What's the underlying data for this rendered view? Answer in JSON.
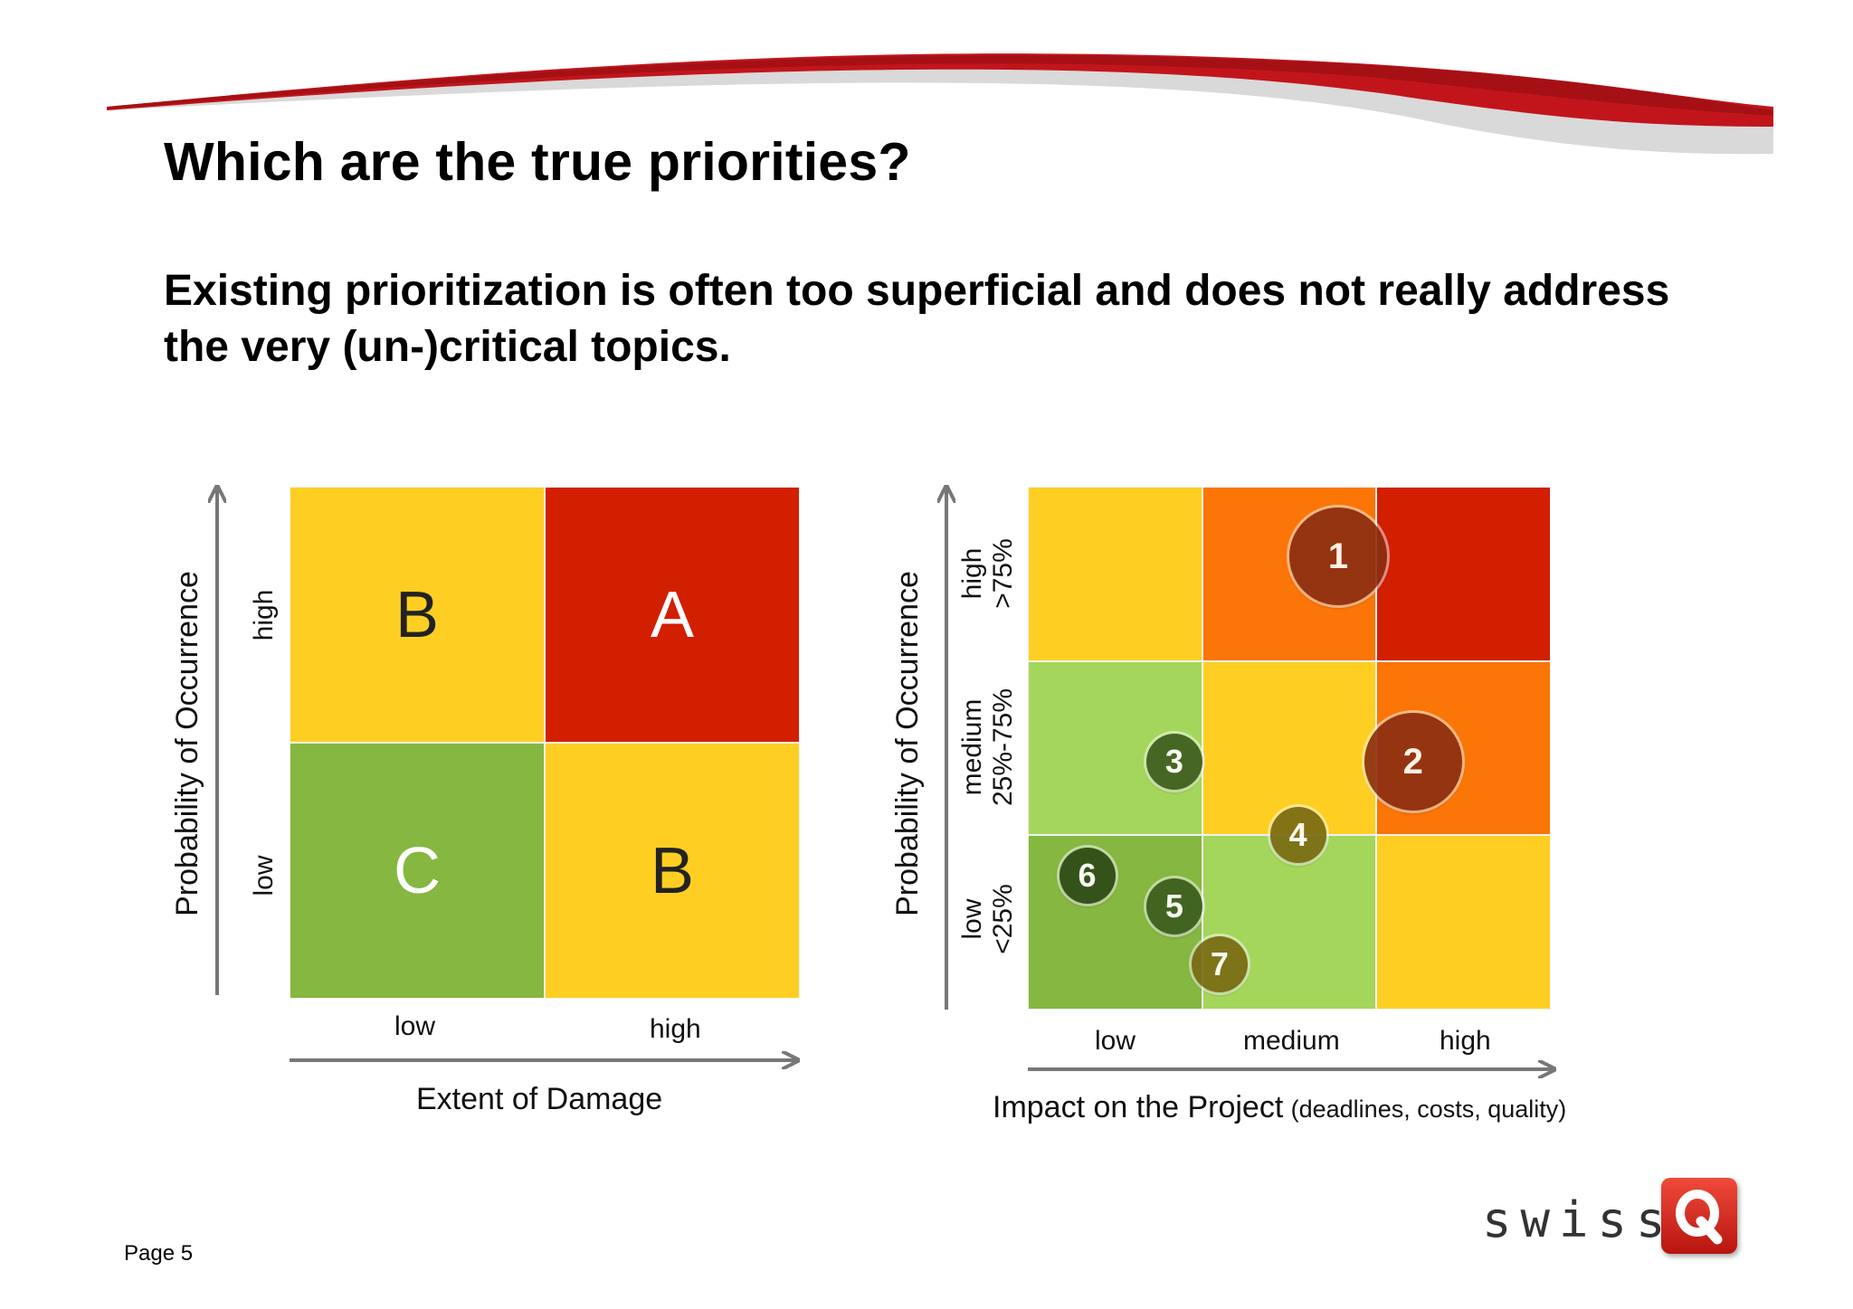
{
  "title": "Which are the true priorities?",
  "subtitle": "Existing prioritization is often too superficial and does not really address the very (un-)critical topics.",
  "colors": {
    "red": "#d21f00",
    "orange": "#fb7507",
    "yellow": "#fecf22",
    "green": "#85b741",
    "light_green": "#a5d65c",
    "bubble_red": "#8a2e12",
    "bubble_green": "#3d5e1f",
    "bubble_olive": "#7a6b14"
  },
  "matrix_left": {
    "y_axis_title": "Probability of Occurrence",
    "x_axis_title": "Extent of Damage",
    "y_labels": [
      "high",
      "low"
    ],
    "x_labels": [
      "low",
      "high"
    ],
    "cells": [
      {
        "label": "B",
        "color": "#fecf22",
        "text_color": "#222222"
      },
      {
        "label": "A",
        "color": "#d21f00",
        "text_color": "#ffffff"
      },
      {
        "label": "C",
        "color": "#85b741",
        "text_color": "#ffffff"
      },
      {
        "label": "B",
        "color": "#fecf22",
        "text_color": "#222222"
      }
    ]
  },
  "matrix_right": {
    "y_axis_title": "Probability of Occurrence",
    "x_axis_title": "Impact on the Project",
    "x_axis_note": "(deadlines, costs, quality)",
    "y_labels": [
      {
        "name": "high",
        "range": ">75%"
      },
      {
        "name": "medium",
        "range": "25%-75%"
      },
      {
        "name": "low",
        "range": "<25%"
      }
    ],
    "x_labels": [
      "low",
      "medium",
      "high"
    ],
    "cell_colors": [
      [
        "#fecf22",
        "#fb7507",
        "#d21f00"
      ],
      [
        "#a5d65c",
        "#fecf22",
        "#fb7507"
      ],
      [
        "#85b741",
        "#a5d65c",
        "#fecf22"
      ]
    ],
    "bubbles": [
      {
        "label": "1",
        "impact": 1.78,
        "probability": 2.6,
        "size": "large",
        "color": "#8a2e12"
      },
      {
        "label": "2",
        "impact": 2.21,
        "probability": 1.42,
        "size": "large",
        "color": "#8a2e12"
      },
      {
        "label": "3",
        "impact": 0.84,
        "probability": 1.42,
        "size": "small",
        "color": "#3d5e1f"
      },
      {
        "label": "4",
        "impact": 1.55,
        "probability": 1.0,
        "size": "small",
        "color": "#7a6b14"
      },
      {
        "label": "5",
        "impact": 0.84,
        "probability": 0.59,
        "size": "small",
        "color": "#3d5e1f"
      },
      {
        "label": "6",
        "impact": 0.34,
        "probability": 0.77,
        "size": "small",
        "color": "#2f4a18"
      },
      {
        "label": "7",
        "impact": 1.1,
        "probability": 0.26,
        "size": "small",
        "color": "#7a6b14"
      }
    ]
  },
  "footer": {
    "page": "Page 5",
    "logo_text": "swiss",
    "logo_letter": "Q"
  }
}
